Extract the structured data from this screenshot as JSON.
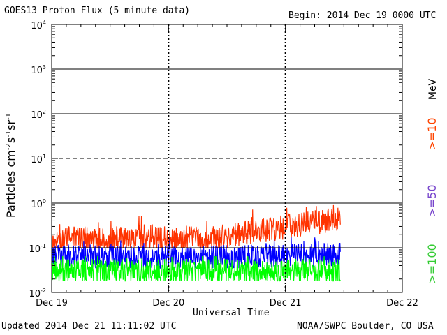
{
  "header": {
    "title": "GOES13 Proton Flux (5 minute data)",
    "begin": "Begin: 2014 Dec 19 0000 UTC"
  },
  "footer": {
    "updated": "Updated 2014 Dec 21 11:11:02 UTC",
    "credit": "NOAA/SWPC Boulder, CO USA"
  },
  "colors": {
    "ge10": "#ff3300",
    "ge50": "#0000ff",
    "ge100": "#00ff00",
    "ge50_label": "#7744cc",
    "ge100_label": "#33cc33",
    "ge10_label": "#ff4400"
  },
  "chart_data": {
    "type": "line",
    "title": "GOES13 Proton Flux (5 minute data)",
    "xlabel": "Universal Time",
    "ylabel_parts": [
      "Particles cm",
      "-2",
      "s",
      "-1",
      "sr",
      "-1"
    ],
    "y_scale": "log",
    "ylim_exp": [
      -2,
      4
    ],
    "y_ticks": [
      {
        "base": "10",
        "exp": "4"
      },
      {
        "base": "10",
        "exp": "3"
      },
      {
        "base": "10",
        "exp": "2"
      },
      {
        "base": "10",
        "exp": "1"
      },
      {
        "base": "10",
        "exp": "0"
      },
      {
        "base": "10",
        "exp": "-1"
      },
      {
        "base": "10",
        "exp": "-2"
      }
    ],
    "x_range_days": [
      0,
      3
    ],
    "x_ticks": [
      "Dec 19",
      "Dec 20",
      "Dec 21",
      "Dec 22"
    ],
    "data_end_day": 2.47,
    "threshold_dashed_at": 10,
    "legend": {
      "unit": "MeV",
      "ge10": ">=10",
      "ge50": ">=50",
      "ge100": ">=100"
    },
    "series": [
      {
        "name": ">=10 MeV",
        "color": "#ff3300",
        "typical": 0.16,
        "end": 0.45,
        "range": [
          0.1,
          0.9
        ]
      },
      {
        "name": ">=50 MeV",
        "color": "#0000ff",
        "typical": 0.06,
        "end": 0.07,
        "range": [
          0.035,
          0.17
        ]
      },
      {
        "name": ">=100 MeV",
        "color": "#00ff00",
        "typical": 0.03,
        "end": 0.03,
        "range": [
          0.018,
          0.065
        ]
      }
    ]
  }
}
